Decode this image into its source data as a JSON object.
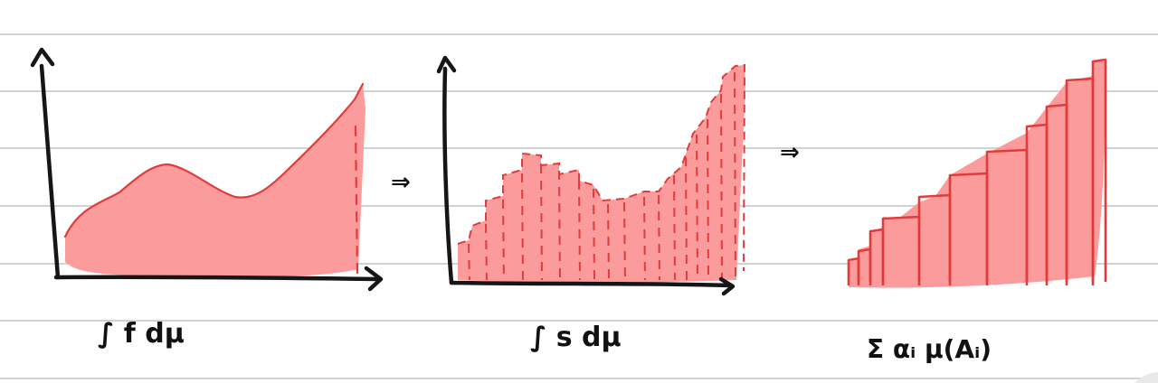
{
  "colors": {
    "paper": "#ffffff",
    "ruling": "#d2d2d2",
    "ink": "#161616",
    "fill": "#fb9b9b",
    "stroke": "#e33b3b"
  },
  "panels": [
    {
      "label": "∫ f dμ"
    },
    {
      "label": "∫ s dμ"
    },
    {
      "label": "Σ αᵢ μ(Aᵢ)"
    }
  ],
  "connectors": [
    "⇒",
    "⇒"
  ]
}
